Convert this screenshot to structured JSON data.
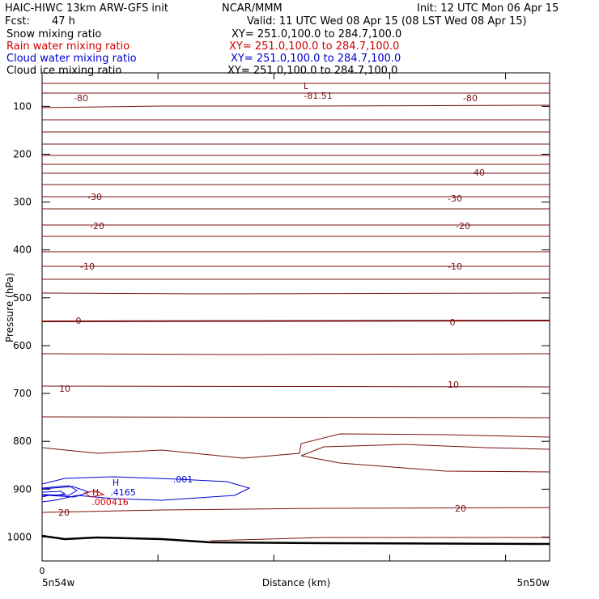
{
  "header": {
    "title": "HAIC-HIWC 13km ARW-GFS init",
    "org": "NCAR/MMM",
    "init": "Init: 12 UTC Mon 06 Apr 15",
    "fcst_label": "Fcst:",
    "fcst_value": "47 h",
    "valid": "Valid: 11 UTC Wed 08 Apr 15 (08 LST Wed 08 Apr 15)"
  },
  "legend_rows": [
    {
      "label": "Snow mixing ratio",
      "xy": "XY= 251.0,100.0 to 284.7,100.0",
      "color": "#000000"
    },
    {
      "label": "Rain water mixing ratio",
      "xy": "XY= 251.0,100.0 to 284.7,100.0",
      "color": "#d00000"
    },
    {
      "label": "Cloud water mixing ratio",
      "xy": "XY= 251.0,100.0 to 284.7,100.0",
      "color": "#0000d0"
    },
    {
      "label": "Cloud ice mixing ratio",
      "xy": "XY= 251.0,100.0 to 284.7,100.0",
      "color": "#000000"
    }
  ],
  "chart_data": {
    "type": "cross-section contour",
    "ylabel": "Pressure (hPa)",
    "xlabel": "Distance (km)",
    "y_ticks": [
      100,
      200,
      300,
      400,
      500,
      600,
      700,
      800,
      900,
      1000
    ],
    "ylim": [
      1050,
      30
    ],
    "x_tick_label": "0",
    "x_ticks_count": 5,
    "x_end_labels": [
      "5n54w",
      "5n50w"
    ],
    "temperature_contours": {
      "color": "#7a1010",
      "interval": 5,
      "labels": [
        "-80",
        "-81.51",
        "L",
        "-80",
        "-40",
        "-30",
        "-30",
        "-20",
        "-20",
        "-10",
        "-10",
        "0",
        "0",
        "10",
        "10",
        "20",
        "20"
      ]
    },
    "cloud_water": {
      "color": "#0000d0",
      "labels": [
        "H",
        ".4165",
        ".001"
      ]
    },
    "rain_water": {
      "color": "#d00000",
      "labels": [
        "H",
        ".000416"
      ]
    },
    "surface_color": "#000000"
  }
}
